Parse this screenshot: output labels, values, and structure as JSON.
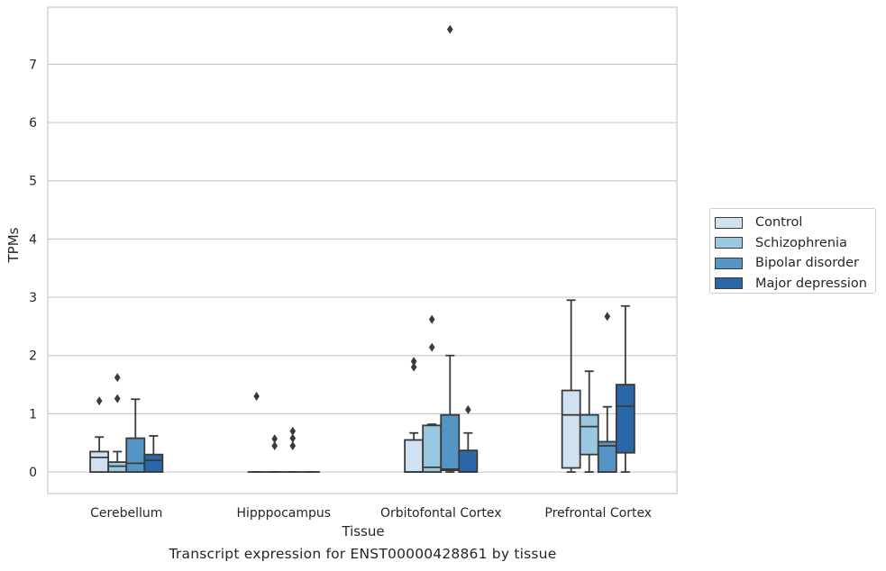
{
  "caption": "Transcript expression for ENST00000428861 by tissue",
  "chart_data": {
    "type": "box",
    "xlabel": "Tissue",
    "ylabel": "TPMs",
    "ylim": [
      -0.37,
      7.98
    ],
    "yticks": [
      0,
      1,
      2,
      3,
      4,
      5,
      6,
      7
    ],
    "grid": "horizontal",
    "legend_position": "right",
    "categories": [
      "Cerebellum",
      "Hipppocampus",
      "Orbitofontal Cortex",
      "Prefrontal Cortex"
    ],
    "series": [
      {
        "name": "Control",
        "color": "#d0e1f2",
        "boxes": [
          {
            "whislo": 0,
            "q1": 0,
            "med": 0.25,
            "q3": 0.35,
            "whishi": 0.6,
            "fliers": [
              1.22
            ]
          },
          {
            "whislo": 0,
            "q1": 0,
            "med": 0,
            "q3": 0,
            "whishi": 0,
            "fliers": [
              1.3
            ]
          },
          {
            "whislo": 0,
            "q1": 0,
            "med": 0,
            "q3": 0.55,
            "whishi": 0.67,
            "fliers": [
              1.8,
              1.9
            ]
          },
          {
            "whislo": 0,
            "q1": 0.07,
            "med": 0.98,
            "q3": 1.4,
            "whishi": 2.95,
            "fliers": []
          }
        ]
      },
      {
        "name": "Schizophrenia",
        "color": "#9ac8e0",
        "boxes": [
          {
            "whislo": 0,
            "q1": 0,
            "med": 0.1,
            "q3": 0.17,
            "whishi": 0.35,
            "fliers": [
              1.26,
              1.62
            ]
          },
          {
            "whislo": 0,
            "q1": 0,
            "med": 0,
            "q3": 0,
            "whishi": 0,
            "fliers": [
              0.45,
              0.57
            ]
          },
          {
            "whislo": 0,
            "q1": 0,
            "med": 0.08,
            "q3": 0.8,
            "whishi": 0.82,
            "fliers": [
              2.14,
              2.62
            ]
          },
          {
            "whislo": 0,
            "q1": 0.3,
            "med": 0.78,
            "q3": 0.98,
            "whishi": 1.73,
            "fliers": []
          }
        ]
      },
      {
        "name": "Bipolar disorder",
        "color": "#5495c6",
        "boxes": [
          {
            "whislo": 0,
            "q1": 0,
            "med": 0.15,
            "q3": 0.58,
            "whishi": 1.25,
            "fliers": []
          },
          {
            "whislo": 0,
            "q1": 0,
            "med": 0,
            "q3": 0,
            "whishi": 0,
            "fliers": [
              0.45,
              0.58,
              0.7
            ]
          },
          {
            "whislo": 0,
            "q1": 0.03,
            "med": 0.05,
            "q3": 0.98,
            "whishi": 2.0,
            "fliers": [
              7.6
            ]
          },
          {
            "whislo": 0,
            "q1": 0,
            "med": 0.45,
            "q3": 0.52,
            "whishi": 1.12,
            "fliers": [
              2.67
            ]
          }
        ]
      },
      {
        "name": "Major depression",
        "color": "#2a67a9",
        "boxes": [
          {
            "whislo": 0,
            "q1": 0,
            "med": 0.2,
            "q3": 0.3,
            "whishi": 0.62,
            "fliers": []
          },
          {
            "whislo": 0,
            "q1": 0,
            "med": 0,
            "q3": 0,
            "whishi": 0,
            "fliers": []
          },
          {
            "whislo": 0,
            "q1": 0,
            "med": 0,
            "q3": 0.37,
            "whishi": 0.67,
            "fliers": [
              1.07
            ]
          },
          {
            "whislo": 0,
            "q1": 0.33,
            "med": 1.13,
            "q3": 1.5,
            "whishi": 2.85,
            "fliers": []
          }
        ]
      }
    ]
  }
}
